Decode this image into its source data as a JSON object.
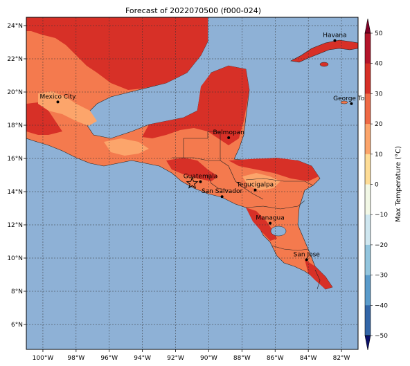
{
  "title": "Forecast of 2022070500 (f000-024)",
  "map": {
    "lon_range": [
      -101,
      -81
    ],
    "lat_range": [
      4.5,
      24.5
    ],
    "ocean_color": "#8eb1d6",
    "x_ticks": [
      {
        "value": -100,
        "label": "100°W"
      },
      {
        "value": -98,
        "label": "98°W"
      },
      {
        "value": -96,
        "label": "96°W"
      },
      {
        "value": -94,
        "label": "94°W"
      },
      {
        "value": -92,
        "label": "92°W"
      },
      {
        "value": -90,
        "label": "90°W"
      },
      {
        "value": -88,
        "label": "88°W"
      },
      {
        "value": -86,
        "label": "86°W"
      },
      {
        "value": -84,
        "label": "84°W"
      },
      {
        "value": -82,
        "label": "82°W"
      }
    ],
    "y_ticks": [
      {
        "value": 24,
        "label": "24°N"
      },
      {
        "value": 22,
        "label": "22°N"
      },
      {
        "value": 20,
        "label": "20°N"
      },
      {
        "value": 18,
        "label": "18°N"
      },
      {
        "value": 16,
        "label": "16°N"
      },
      {
        "value": 14,
        "label": "14°N"
      },
      {
        "value": 12,
        "label": "12°N"
      },
      {
        "value": 10,
        "label": "10°N"
      },
      {
        "value": 8,
        "label": "8°N"
      },
      {
        "value": 6,
        "label": "6°N"
      }
    ],
    "cities": [
      {
        "name": "Havana",
        "lon": -82.4,
        "lat": 23.1
      },
      {
        "name": "Mexico City",
        "lon": -99.1,
        "lat": 19.4
      },
      {
        "name": "George Tow",
        "lon": -81.4,
        "lat": 19.3
      },
      {
        "name": "Belmopan",
        "lon": -88.8,
        "lat": 17.25
      },
      {
        "name": "Guatemala",
        "lon": -90.5,
        "lat": 14.6
      },
      {
        "name": "Tegucigalpa",
        "lon": -87.2,
        "lat": 14.1
      },
      {
        "name": "San Salvador",
        "lon": -89.2,
        "lat": 13.7
      },
      {
        "name": "Managua",
        "lon": -86.3,
        "lat": 12.1
      },
      {
        "name": "San Jose",
        "lon": -84.1,
        "lat": 9.9
      }
    ],
    "star_marker": {
      "lon": -91.0,
      "lat": 14.5
    }
  },
  "colorbar": {
    "label": "Max Temperature (°C)",
    "ticks": [
      "50",
      "40",
      "30",
      "20",
      "10",
      "0",
      "−10",
      "−20",
      "−30",
      "−40",
      "−50"
    ],
    "colors": [
      "#b4152a",
      "#d63027",
      "#ef6a45",
      "#fca56b",
      "#fedd97",
      "#f2f8e6",
      "#cfe7f0",
      "#92c5de",
      "#5a9bcb",
      "#3366a8",
      "#2b3790"
    ],
    "extend_max_color": "#800026",
    "extend_min_color": "#0a0f6a"
  },
  "field_colors": {
    "range_20_30": "#f47a4e",
    "range_30_40": "#d73027",
    "range_10_20": "#fca56b"
  }
}
